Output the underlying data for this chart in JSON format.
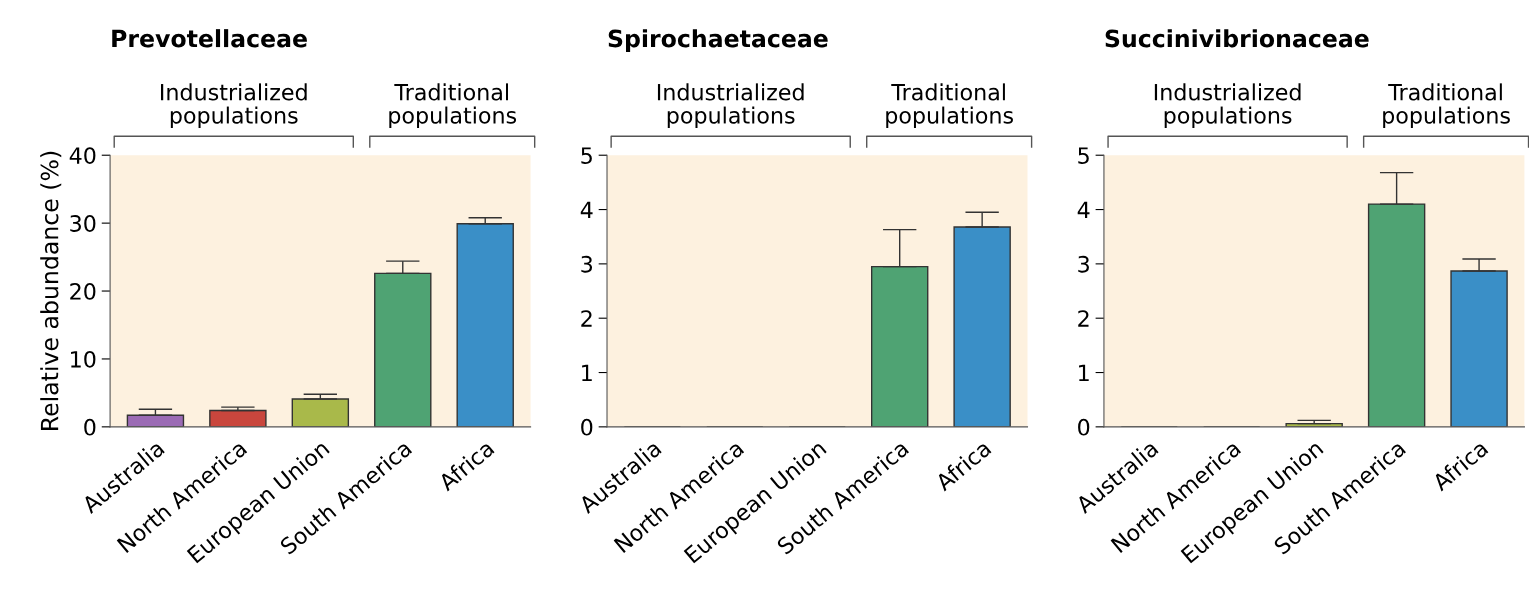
{
  "chart_data": [
    {
      "type": "bar",
      "title": "Prevotellaceae",
      "ylabel": "Relative abundance (%)",
      "categories": [
        "Australia",
        "North America",
        "European Union",
        "South America",
        "Africa"
      ],
      "values": [
        1.7,
        2.4,
        4.1,
        22.6,
        29.9
      ],
      "colors": [
        "#9b6bb5",
        "#c9463d",
        "#a9b94a",
        "#4fa373",
        "#3a8fc7"
      ],
      "errors": [
        [
          1.7,
          2.6
        ],
        [
          2.4,
          2.9
        ],
        [
          4.1,
          4.8
        ],
        [
          22.6,
          24.4
        ],
        [
          29.9,
          30.8
        ]
      ],
      "ylim": [
        0,
        40
      ],
      "yticks": [
        0,
        10,
        20,
        30,
        40
      ],
      "annotations": [
        "Industrialized\npopulations",
        "Traditional\npopulations"
      ]
    },
    {
      "type": "bar",
      "title": "Spirochaetaceae",
      "categories": [
        "Australia",
        "North America",
        "European Union",
        "South America",
        "Africa"
      ],
      "values": [
        0,
        0,
        0,
        2.95,
        3.68
      ],
      "colors": [
        "#9b6bb5",
        "#c9463d",
        "#a9b94a",
        "#4fa373",
        "#3a8fc7"
      ],
      "errors": [
        null,
        null,
        null,
        [
          2.95,
          3.63
        ],
        [
          3.68,
          3.95
        ]
      ],
      "ylim": [
        0,
        5
      ],
      "yticks": [
        0,
        1,
        2,
        3,
        4,
        5
      ],
      "annotations": [
        "Industrialized\npopulations",
        "Traditional\npopulations"
      ]
    },
    {
      "type": "bar",
      "title": "Succinivibrionaceae",
      "categories": [
        "Australia",
        "North America",
        "European Union",
        "South America",
        "Africa"
      ],
      "values": [
        0,
        0,
        0.06,
        4.1,
        2.87
      ],
      "colors": [
        "#9b6bb5",
        "#c9463d",
        "#a9b94a",
        "#4fa373",
        "#3a8fc7"
      ],
      "errors": [
        null,
        null,
        [
          0.06,
          0.12
        ],
        [
          4.1,
          4.68
        ],
        [
          2.87,
          3.09
        ]
      ],
      "ylim": [
        0,
        5
      ],
      "yticks": [
        0,
        1,
        2,
        3,
        4,
        5
      ],
      "annotations": [
        "Industrialized\npopulations",
        "Traditional\npopulations"
      ]
    }
  ]
}
